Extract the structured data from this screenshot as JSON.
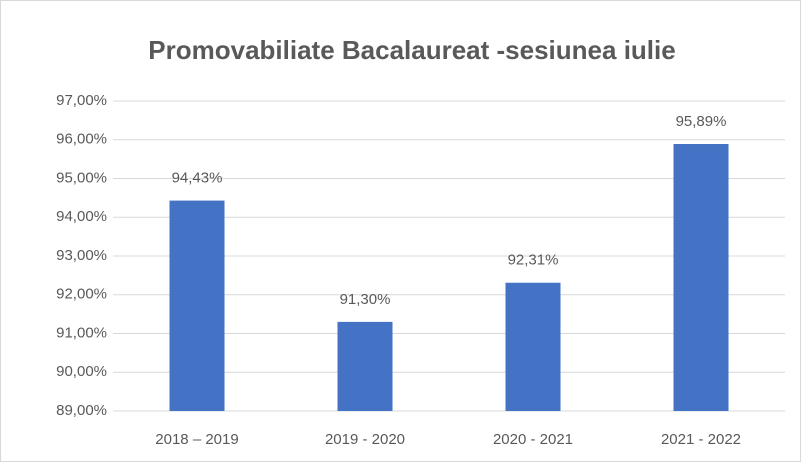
{
  "chart_data": {
    "type": "bar",
    "title": "Promovabiliate Bacalaureat -sesiunea iulie",
    "categories": [
      "2018 – 2019",
      "2019 - 2020",
      "2020 - 2021",
      "2021 - 2022"
    ],
    "values": [
      94.43,
      91.3,
      92.31,
      95.89
    ],
    "value_labels": [
      "94,43%",
      "91,30%",
      "92,31%",
      "95,89%"
    ],
    "color": "#4472c4",
    "ylim": [
      89,
      97
    ],
    "yticks": [
      {
        "value": 89,
        "label": "89,00%"
      },
      {
        "value": 90,
        "label": "90,00%"
      },
      {
        "value": 91,
        "label": "91,00%"
      },
      {
        "value": 92,
        "label": "92,00%"
      },
      {
        "value": 93,
        "label": "93,00%"
      },
      {
        "value": 94,
        "label": "94,00%"
      },
      {
        "value": 95,
        "label": "95,00%"
      },
      {
        "value": 96,
        "label": "96,00%"
      },
      {
        "value": 97,
        "label": "97,00%"
      }
    ],
    "grid": true
  }
}
